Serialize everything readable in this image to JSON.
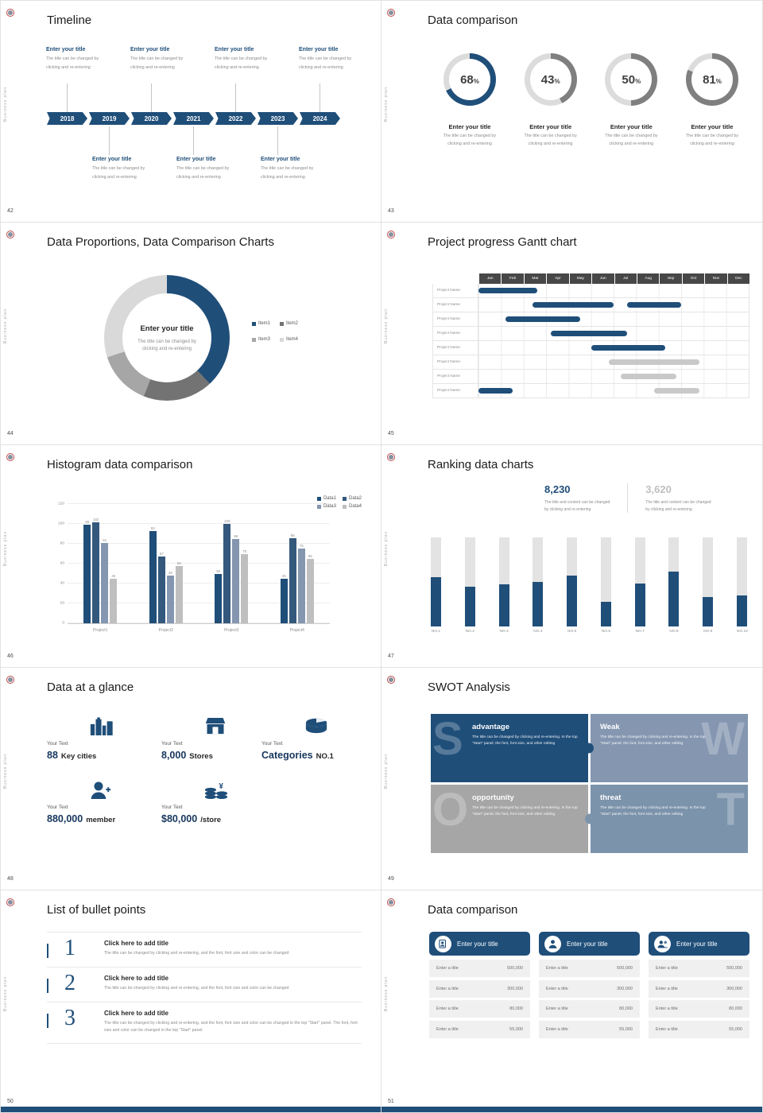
{
  "chrome": {
    "sidebar_text": "Business plan"
  },
  "colors": {
    "navy": "#1f4e79",
    "slate": "#8496b0",
    "gray": "#a6a6a6",
    "light": "#d9d9d9",
    "gantt_gray": "#c9c9c9"
  },
  "slides": {
    "timeline": {
      "page": "42",
      "title": "Timeline",
      "years": [
        "2018",
        "2019",
        "2020",
        "2021",
        "2022",
        "2023",
        "2024"
      ],
      "entry_title": "Enter your title",
      "entry_desc_lines": [
        "The title can be changed by",
        "clicking and re-entering"
      ],
      "top_indices": [
        0,
        2,
        4,
        6
      ],
      "bottom_indices": [
        1,
        3,
        5
      ]
    },
    "donut_row": {
      "page": "43",
      "title": "Data comparison",
      "entry_title": "Enter your title",
      "entry_desc_lines": [
        "The title can be changed by",
        "clicking and re-entering"
      ],
      "chart_data": {
        "type": "donut",
        "values": [
          68,
          43,
          50,
          81
        ],
        "unit": "%",
        "colors": [
          "#1f4e79",
          "#7f7f7f",
          "#7f7f7f",
          "#7f7f7f"
        ],
        "track_color": "#dcdcdc"
      }
    },
    "proportions": {
      "page": "44",
      "title": "Data Proportions, Data Comparison Charts",
      "center_title": "Enter your title",
      "center_desc_lines": [
        "The title can be changed by",
        "clicking and re-entering"
      ],
      "chart_data": {
        "type": "pie",
        "legend": [
          "Item1",
          "Item2",
          "Item3",
          "Item4"
        ],
        "values": [
          38,
          18,
          14,
          30
        ],
        "colors": [
          "#1f4e79",
          "#737373",
          "#a6a6a6",
          "#d9d9d9"
        ]
      }
    },
    "gantt": {
      "page": "45",
      "title": "Project progress Gantt chart",
      "row_label": "Project Name",
      "chart_data": {
        "type": "gantt",
        "months": [
          "Jan",
          "Feb",
          "Mar",
          "Apr",
          "May",
          "Jun",
          "Jul",
          "Aug",
          "Sep",
          "Oct",
          "Nov",
          "Dec"
        ],
        "rows": 8,
        "bars": [
          {
            "row": 0,
            "start": 0,
            "end": 2.6,
            "color": "navy"
          },
          {
            "row": 1,
            "start": 2.4,
            "end": 6,
            "color": "navy"
          },
          {
            "row": 1,
            "start": 6.6,
            "end": 9,
            "color": "navy"
          },
          {
            "row": 2,
            "start": 1.2,
            "end": 4.5,
            "color": "navy"
          },
          {
            "row": 3,
            "start": 3.2,
            "end": 6.6,
            "color": "navy"
          },
          {
            "row": 4,
            "start": 5,
            "end": 8.3,
            "color": "navy"
          },
          {
            "row": 5,
            "start": 5.8,
            "end": 9.8,
            "color": "gray"
          },
          {
            "row": 6,
            "start": 6.3,
            "end": 8.8,
            "color": "gray"
          },
          {
            "row": 7,
            "start": 0,
            "end": 1.5,
            "color": "navy"
          },
          {
            "row": 7,
            "start": 7.8,
            "end": 9.8,
            "color": "gray"
          }
        ]
      }
    },
    "histogram": {
      "page": "46",
      "title": "Histogram data comparison",
      "chart_data": {
        "type": "bar",
        "categories": [
          "Project1",
          "Project2",
          "Project3",
          "Project4"
        ],
        "series": [
          {
            "name": "Data1",
            "values": [
              99,
              93,
              50,
              45
            ],
            "color": "#1f4e79"
          },
          {
            "name": "Data2",
            "values": [
              102,
              67,
              100,
              86
            ],
            "color": "#34597d"
          },
          {
            "name": "Data3",
            "values": [
              81,
              48,
              85,
              75
            ],
            "color": "#8496b0"
          },
          {
            "name": "Data4",
            "values": [
              45,
              58,
              70,
              65
            ],
            "color": "#bfbfbf"
          }
        ],
        "ylim": [
          0,
          120
        ],
        "ticks": [
          0,
          20,
          40,
          60,
          80,
          100,
          120
        ]
      }
    },
    "ranking": {
      "page": "47",
      "title": "Ranking data charts",
      "stats": [
        {
          "value": "8,230",
          "color": "#1f4e79",
          "desc_lines": [
            "The title and content can be changed",
            "by clicking and re-entering"
          ]
        },
        {
          "value": "3,620",
          "color": "#bfbfbf",
          "desc_lines": [
            "The title and content can be changed",
            "by clicking and re-entering"
          ]
        }
      ],
      "chart_data": {
        "type": "bar",
        "categories": [
          "NO.1",
          "NO.2",
          "NO.3",
          "NO.4",
          "NO.5",
          "NO.6",
          "NO.7",
          "NO.8",
          "NO.9",
          "NO.10"
        ],
        "values": [
          55,
          45,
          47,
          50,
          57,
          28,
          48,
          62,
          33,
          35
        ],
        "background_value": 100,
        "ylim": [
          0,
          100
        ]
      }
    },
    "glance": {
      "page": "48",
      "title": "Data at a glance",
      "label": "Your Text",
      "items": [
        {
          "icon": "city-icon",
          "value": "88",
          "unit": "Key cities"
        },
        {
          "icon": "store-icon",
          "value": "8,000",
          "unit": "Stores"
        },
        {
          "icon": "categories-icon",
          "value": "Categories",
          "unit": "NO.1"
        },
        {
          "icon": "member-icon",
          "value": "880,000",
          "unit": "member"
        },
        {
          "icon": "coins-icon",
          "value": "$80,000",
          "unit": "/store"
        }
      ]
    },
    "swot": {
      "page": "49",
      "title": "SWOT Analysis",
      "quadrants": [
        {
          "letter": "S",
          "name": "advantage",
          "color": "#1f4e79",
          "desc": "The title can be changed by clicking and re-entering. In the top \"Start\" panel, the font, font size, and other editing"
        },
        {
          "letter": "W",
          "name": "Weak",
          "color": "#8496b0",
          "desc": "The title can be changed by clicking and re-entering. In the top \"Start\" panel, the font, font size, and other editing"
        },
        {
          "letter": "O",
          "name": "opportunity",
          "color": "#a6a6a6",
          "desc": "The title can be changed by clicking and re-entering. In the top \"Start\" panel, the font, font size, and other editing"
        },
        {
          "letter": "T",
          "name": "threat",
          "color": "#7b93ab",
          "desc": "The title can be changed by clicking and re-entering. In the top \"Start\" panel, the font, font size, and other editing"
        }
      ]
    },
    "bullets": {
      "page": "50",
      "title": "List of bullet points",
      "items": [
        {
          "num": "1",
          "title": "Click here to add title",
          "desc": "The title can be changed by clicking and re-entering, and the font, font size and color can be changed"
        },
        {
          "num": "2",
          "title": "Click here to add title",
          "desc": "The title can be changed by clicking and re-entering, and the font, font size and color can be changed"
        },
        {
          "num": "3",
          "title": "Click here to add title",
          "desc": "The title can be changed by clicking and re-entering, and the font, font size and color can be changed in the top \"Start\" panel. The font, font size and color can be changed in the top \"Start\" panel."
        }
      ]
    },
    "cards": {
      "page": "51",
      "title": "Data comparison",
      "header": "Enter your title",
      "row_label": "Enter a title",
      "values": [
        "500,000",
        "300,000",
        "80,000",
        "55,000"
      ],
      "icons": [
        "clipboard-person-icon",
        "person-icon",
        "people-icon"
      ]
    }
  }
}
